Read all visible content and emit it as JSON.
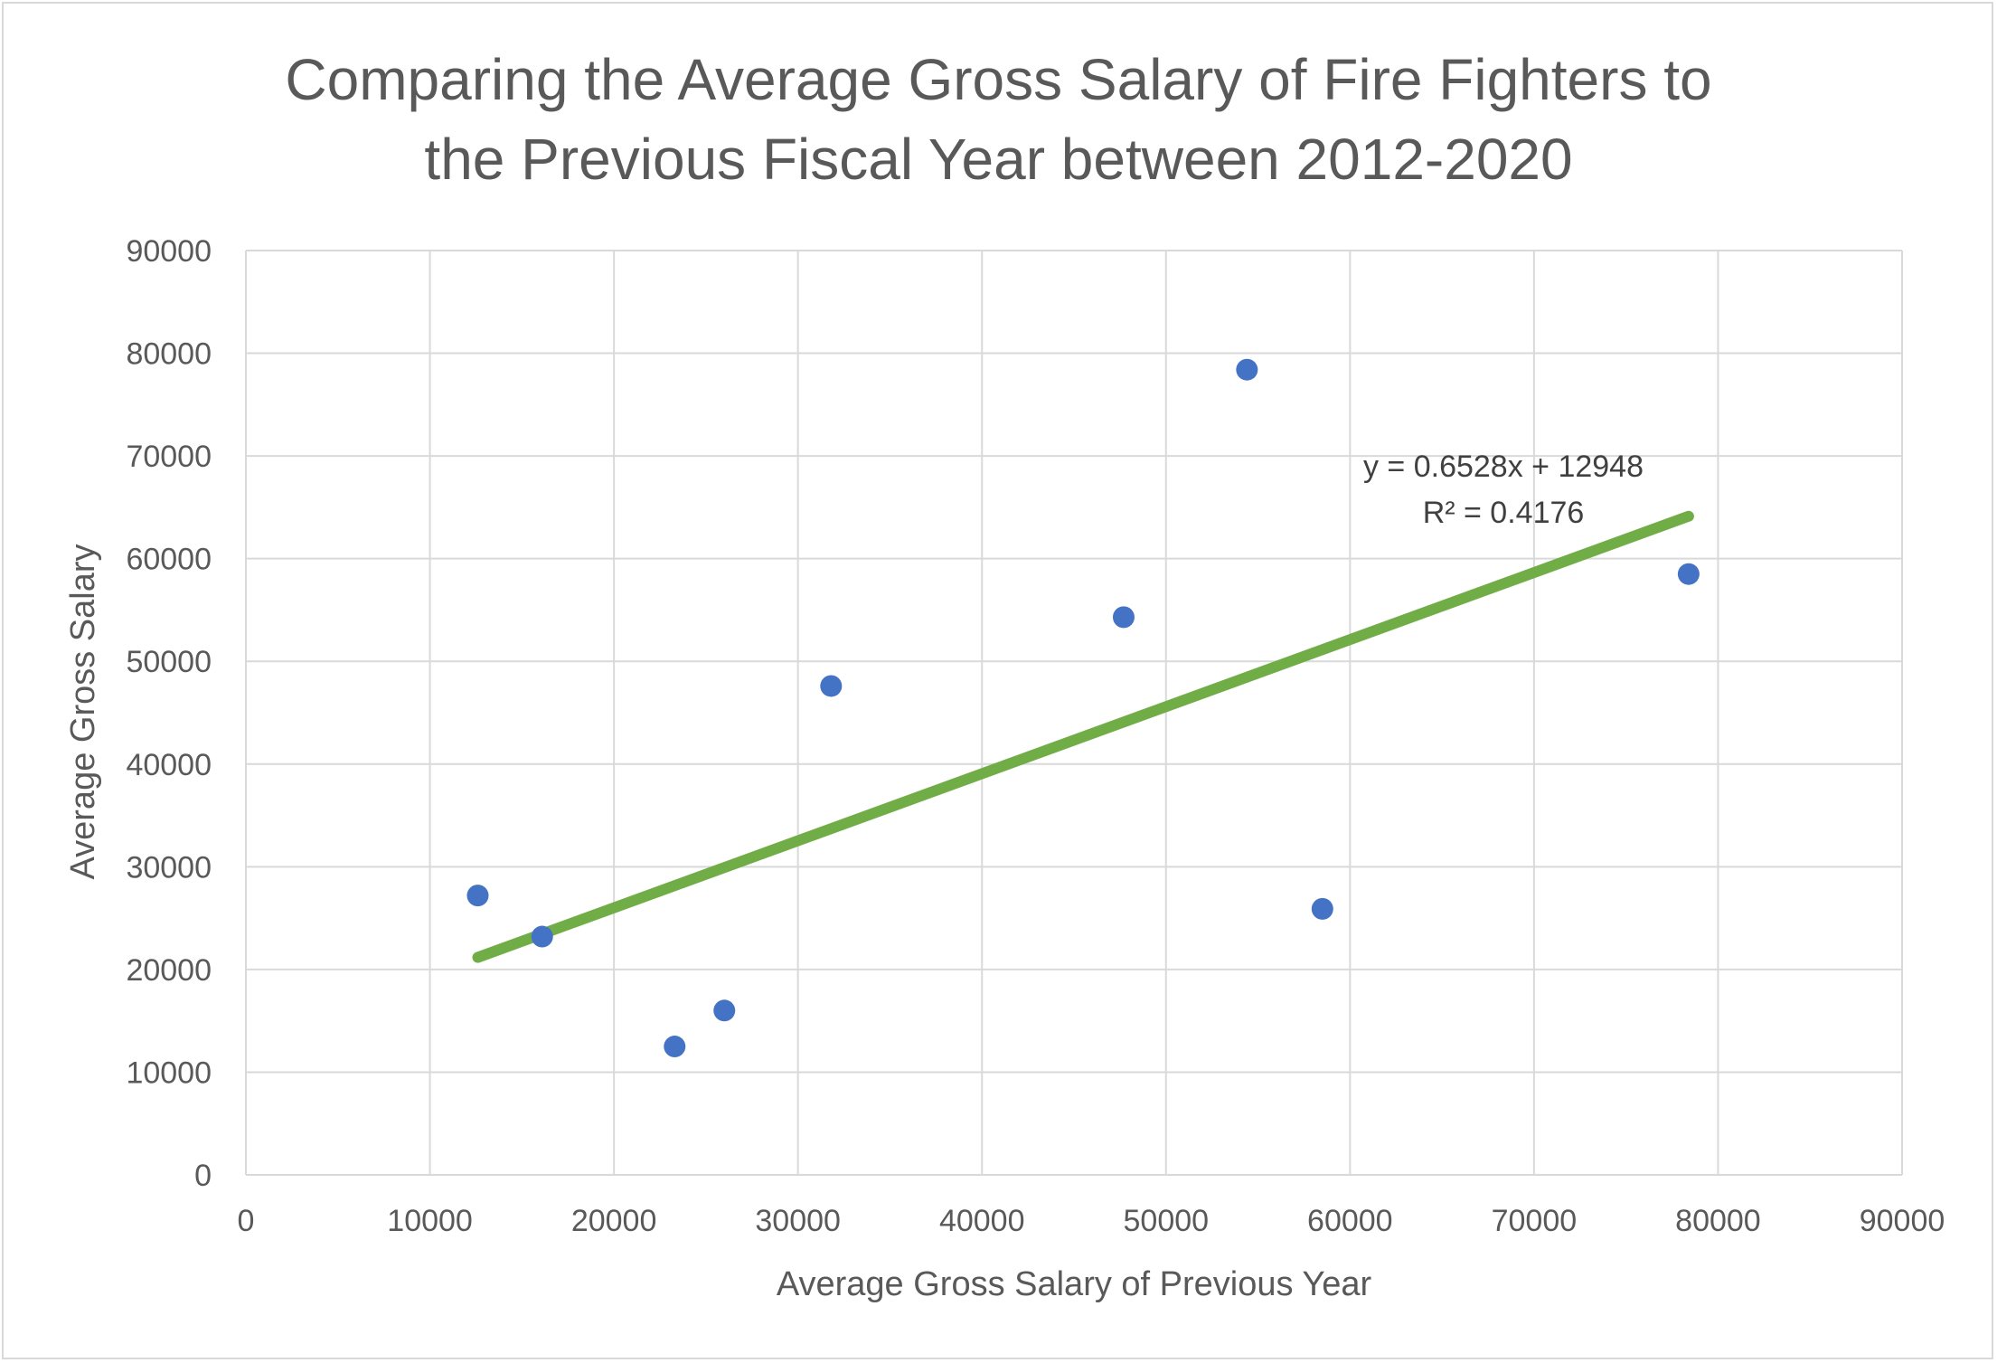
{
  "chart_data": {
    "type": "scatter",
    "title": "Comparing the Average Gross Salary of Fire Fighters to\nthe Previous Fiscal Year between 2012-2020",
    "xlabel": "Average Gross Salary of Previous Year",
    "ylabel": "Average Gross  Salary",
    "xlim": [
      0,
      90000
    ],
    "ylim": [
      0,
      90000
    ],
    "x_ticks": [
      "0",
      "10000",
      "20000",
      "30000",
      "40000",
      "50000",
      "60000",
      "70000",
      "80000",
      "90000"
    ],
    "y_ticks": [
      "0",
      "10000",
      "20000",
      "30000",
      "40000",
      "50000",
      "60000",
      "70000",
      "80000",
      "90000"
    ],
    "grid": true,
    "legend": "none",
    "series": [
      {
        "color": "#4472c4",
        "points": [
          {
            "x": 12600,
            "y": 27200
          },
          {
            "x": 16100,
            "y": 23200
          },
          {
            "x": 23300,
            "y": 12500
          },
          {
            "x": 26000,
            "y": 16000
          },
          {
            "x": 31800,
            "y": 47600
          },
          {
            "x": 47700,
            "y": 54300
          },
          {
            "x": 54400,
            "y": 78400
          },
          {
            "x": 58500,
            "y": 25900
          },
          {
            "x": 78400,
            "y": 58500
          }
        ]
      }
    ],
    "trendline": {
      "type": "linear",
      "slope": 0.6528,
      "intercept": 12948,
      "x_range": [
        12600,
        78400
      ],
      "color": "#70ad47",
      "equation_label": "y = 0.6528x + 12948",
      "r2_label": "R² = 0.4176"
    }
  }
}
